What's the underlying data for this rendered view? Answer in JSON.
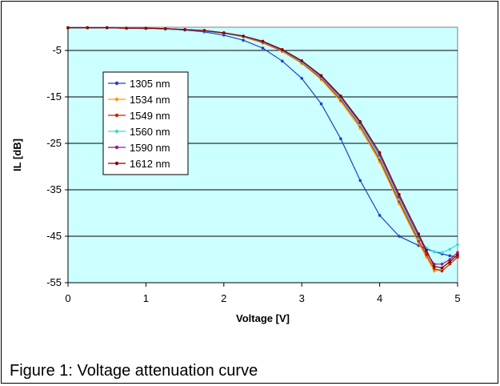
{
  "caption": "Figure 1: Voltage attenuation curve",
  "chart_data": {
    "type": "line",
    "xlabel": "Voltage [V]",
    "ylabel": "IL [dB]",
    "xlim": [
      0,
      5
    ],
    "ylim": [
      -55,
      0
    ],
    "xticks": [
      0,
      1,
      2,
      3,
      4,
      5
    ],
    "yticks": [
      -5,
      -15,
      -25,
      -35,
      -45,
      -55
    ],
    "grid": "horizontal",
    "legend_position": "left-middle",
    "plot_background": "#ccffff",
    "x": [
      0,
      0.25,
      0.5,
      0.75,
      1.0,
      1.25,
      1.5,
      1.75,
      2.0,
      2.25,
      2.5,
      2.75,
      3.0,
      3.25,
      3.5,
      3.75,
      4.0,
      4.25,
      4.5,
      4.6,
      4.7,
      4.8,
      4.9,
      5.0
    ],
    "series": [
      {
        "name": "1305 nm",
        "color": "#1f3fcc",
        "values": [
          -0.1,
          -0.1,
          -0.1,
          -0.2,
          -0.3,
          -0.4,
          -0.6,
          -1.0,
          -1.7,
          -2.8,
          -4.5,
          -7.3,
          -11.0,
          -16.5,
          -24.0,
          -33.0,
          -40.5,
          -45.0,
          -47.0,
          -47.8,
          -48.3,
          -48.8,
          -49.2,
          -49.5
        ]
      },
      {
        "name": "1534 nm",
        "color": "#ff9900",
        "values": [
          -0.1,
          -0.1,
          -0.1,
          -0.2,
          -0.3,
          -0.4,
          -0.5,
          -0.8,
          -1.3,
          -2.1,
          -3.4,
          -5.2,
          -7.8,
          -11.3,
          -16.0,
          -21.8,
          -29.0,
          -38.0,
          -46.5,
          -49.5,
          -52.5,
          -52.0,
          -50.3,
          -49.0
        ]
      },
      {
        "name": "1549 nm",
        "color": "#cc2200",
        "values": [
          -0.1,
          -0.1,
          -0.1,
          -0.2,
          -0.3,
          -0.4,
          -0.5,
          -0.8,
          -1.3,
          -2.0,
          -3.3,
          -5.1,
          -7.6,
          -11.0,
          -15.6,
          -21.3,
          -28.5,
          -37.5,
          -46.0,
          -49.0,
          -52.0,
          -52.5,
          -51.0,
          -49.5
        ]
      },
      {
        "name": "1560 nm",
        "color": "#33dddd",
        "values": [
          -0.1,
          -0.1,
          -0.1,
          -0.2,
          -0.3,
          -0.4,
          -0.5,
          -0.8,
          -1.3,
          -2.0,
          -3.2,
          -5.0,
          -7.5,
          -10.8,
          -15.3,
          -21.0,
          -28.0,
          -37.0,
          -45.5,
          -47.5,
          -48.3,
          -48.5,
          -47.8,
          -46.8
        ]
      },
      {
        "name": "1590 nm",
        "color": "#882288",
        "values": [
          -0.1,
          -0.1,
          -0.1,
          -0.2,
          -0.2,
          -0.3,
          -0.5,
          -0.7,
          -1.2,
          -1.9,
          -3.1,
          -4.9,
          -7.3,
          -10.6,
          -15.0,
          -20.6,
          -27.5,
          -36.5,
          -45.0,
          -48.5,
          -51.0,
          -51.0,
          -50.0,
          -48.5
        ]
      },
      {
        "name": "1612 nm",
        "color": "#880000",
        "values": [
          -0.1,
          -0.1,
          -0.1,
          -0.2,
          -0.2,
          -0.3,
          -0.5,
          -0.7,
          -1.2,
          -1.9,
          -3.0,
          -4.8,
          -7.2,
          -10.4,
          -14.8,
          -20.3,
          -27.0,
          -36.0,
          -44.5,
          -48.0,
          -51.5,
          -51.8,
          -50.5,
          -49.0
        ]
      }
    ]
  }
}
